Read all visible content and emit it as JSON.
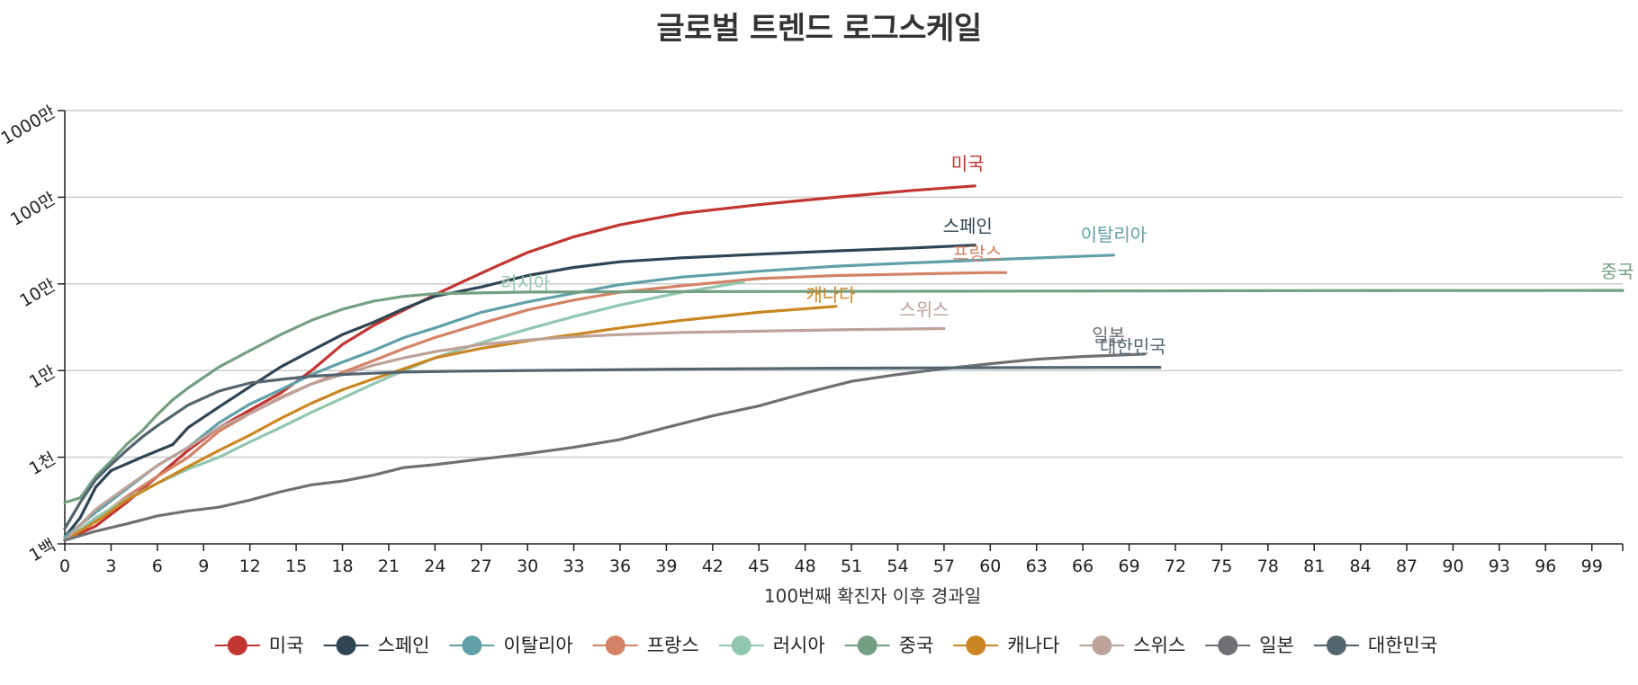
{
  "chart_data": {
    "type": "line",
    "title": "글로벌 트렌드 로그스케일",
    "xlabel": "100번째 확진자 이후 경과일",
    "ylabel": "",
    "y_scale": "log",
    "ylim": [
      100,
      10000000
    ],
    "xlim": [
      0,
      101
    ],
    "x_ticks": [
      0,
      3,
      6,
      9,
      12,
      15,
      18,
      21,
      24,
      27,
      30,
      33,
      36,
      39,
      42,
      45,
      48,
      51,
      54,
      57,
      60,
      63,
      66,
      69,
      72,
      75,
      78,
      81,
      84,
      87,
      90,
      93,
      96,
      99
    ],
    "y_ticks": [
      {
        "value": 100,
        "label": "1백"
      },
      {
        "value": 1000,
        "label": "1천"
      },
      {
        "value": 10000,
        "label": "1만"
      },
      {
        "value": 100000,
        "label": "10만"
      },
      {
        "value": 1000000,
        "label": "100만"
      },
      {
        "value": 10000000,
        "label": "1000만"
      }
    ],
    "grid": "horizontal",
    "legend_position": "bottom",
    "series": [
      {
        "name": "미국",
        "color": "#c23531",
        "x": [
          0,
          2,
          4,
          6,
          8,
          10,
          12,
          14,
          16,
          18,
          20,
          22,
          24,
          26,
          28,
          30,
          33,
          36,
          40,
          45,
          50,
          55,
          59
        ],
        "values": [
          110,
          160,
          300,
          600,
          1200,
          2200,
          3500,
          5500,
          10000,
          20000,
          33000,
          50000,
          75000,
          110000,
          160000,
          230000,
          350000,
          480000,
          650000,
          820000,
          1000000,
          1200000,
          1350000
        ]
      },
      {
        "name": "스페인",
        "color": "#2f4554",
        "x": [
          0,
          1,
          2,
          3,
          5,
          7,
          8,
          10,
          12,
          14,
          16,
          18,
          20,
          22,
          24,
          27,
          30,
          33,
          36,
          40,
          45,
          50,
          55,
          59
        ],
        "values": [
          120,
          200,
          450,
          700,
          1000,
          1400,
          2200,
          3800,
          6500,
          11000,
          17000,
          26000,
          36000,
          52000,
          72000,
          92000,
          125000,
          155000,
          180000,
          200000,
          220000,
          240000,
          260000,
          280000
        ]
      },
      {
        "name": "이탈리아",
        "color": "#61a0a8",
        "x": [
          0,
          2,
          4,
          6,
          8,
          10,
          12,
          14,
          16,
          18,
          20,
          22,
          24,
          27,
          30,
          33,
          36,
          40,
          45,
          50,
          55,
          60,
          65,
          68
        ],
        "values": [
          120,
          230,
          430,
          800,
          1300,
          2500,
          4100,
          6000,
          9000,
          12500,
          17000,
          24000,
          31000,
          47000,
          62000,
          78000,
          98000,
          120000,
          140000,
          160000,
          175000,
          190000,
          205000,
          215000
        ]
      },
      {
        "name": "프랑스",
        "color": "#d48265",
        "x": [
          0,
          2,
          4,
          6,
          8,
          10,
          12,
          14,
          16,
          18,
          20,
          22,
          24,
          27,
          30,
          33,
          36,
          40,
          45,
          50,
          55,
          60,
          61
        ],
        "values": [
          110,
          190,
          350,
          600,
          1000,
          2000,
          3200,
          4900,
          7000,
          9500,
          13000,
          18000,
          24000,
          35000,
          50000,
          65000,
          80000,
          95000,
          115000,
          125000,
          130000,
          135000,
          135000
        ]
      },
      {
        "name": "러시아",
        "color": "#91c7ae",
        "x": [
          0,
          2,
          4,
          6,
          8,
          10,
          12,
          14,
          16,
          18,
          20,
          22,
          24,
          27,
          30,
          33,
          36,
          40,
          44
        ],
        "values": [
          110,
          200,
          330,
          500,
          730,
          1000,
          1500,
          2200,
          3300,
          4800,
          7000,
          10000,
          14000,
          21000,
          30000,
          42000,
          57000,
          80000,
          105000
        ]
      },
      {
        "name": "중국",
        "color": "#749f83",
        "x": [
          0,
          1,
          2,
          3,
          4,
          5,
          6,
          7,
          8,
          10,
          12,
          14,
          16,
          18,
          20,
          22,
          24,
          30,
          40,
          60,
          80,
          101
        ],
        "values": [
          300,
          340,
          600,
          900,
          1400,
          2000,
          3100,
          4600,
          6300,
          11000,
          17000,
          26000,
          38000,
          51000,
          63000,
          72000,
          77000,
          80500,
          81500,
          82500,
          83500,
          84000
        ]
      },
      {
        "name": "캐나다",
        "color": "#ca8622",
        "x": [
          0,
          2,
          4,
          6,
          8,
          10,
          12,
          14,
          16,
          18,
          20,
          22,
          24,
          27,
          30,
          33,
          36,
          40,
          45,
          50
        ],
        "values": [
          110,
          180,
          320,
          500,
          780,
          1200,
          1800,
          2800,
          4200,
          6000,
          8000,
          10500,
          14000,
          18000,
          22000,
          26000,
          31000,
          38000,
          47000,
          55000
        ]
      },
      {
        "name": "스위스",
        "color": "#bda29a",
        "x": [
          0,
          2,
          4,
          6,
          8,
          10,
          12,
          14,
          16,
          18,
          20,
          22,
          24,
          27,
          30,
          33,
          36,
          40,
          45,
          50,
          57
        ],
        "values": [
          110,
          250,
          450,
          800,
          1300,
          2200,
          3200,
          4800,
          7000,
          9000,
          11500,
          14000,
          16500,
          20000,
          22500,
          24500,
          26000,
          27500,
          28500,
          29500,
          30500
        ]
      },
      {
        "name": "일본",
        "color": "#6e7074",
        "x": [
          0,
          2,
          4,
          6,
          8,
          10,
          12,
          14,
          16,
          18,
          20,
          22,
          24,
          27,
          30,
          33,
          36,
          39,
          42,
          45,
          48,
          51,
          54,
          57,
          60,
          63,
          66,
          70
        ],
        "values": [
          110,
          140,
          170,
          210,
          240,
          265,
          320,
          400,
          480,
          530,
          620,
          760,
          820,
          950,
          1100,
          1300,
          1600,
          2200,
          3000,
          3900,
          5500,
          7500,
          9000,
          10500,
          12000,
          13500,
          14500,
          15500
        ]
      },
      {
        "name": "대한민국",
        "color": "#546570",
        "x": [
          0,
          1,
          2,
          3,
          4,
          5,
          6,
          8,
          10,
          12,
          14,
          16,
          18,
          20,
          22,
          25,
          30,
          40,
          50,
          60,
          71
        ],
        "values": [
          150,
          300,
          550,
          820,
          1200,
          1700,
          2300,
          4000,
          5800,
          7200,
          7900,
          8600,
          9000,
          9300,
          9600,
          9800,
          10000,
          10400,
          10650,
          10800,
          10900
        ]
      }
    ],
    "line_labels": [
      {
        "series": "미국",
        "text": "미국"
      },
      {
        "series": "스페인",
        "text": "스페인"
      },
      {
        "series": "이탈리아",
        "text": "이탈리아"
      },
      {
        "series": "프랑스",
        "text": "프랑스"
      },
      {
        "series": "러시아",
        "text": "러시아"
      },
      {
        "series": "중국",
        "text": "중국"
      },
      {
        "series": "캐나다",
        "text": "캐나다"
      },
      {
        "series": "스위스",
        "text": "스위스"
      },
      {
        "series": "일본",
        "text": "일본"
      },
      {
        "series": "대한민국",
        "text": "대한민국"
      }
    ]
  }
}
